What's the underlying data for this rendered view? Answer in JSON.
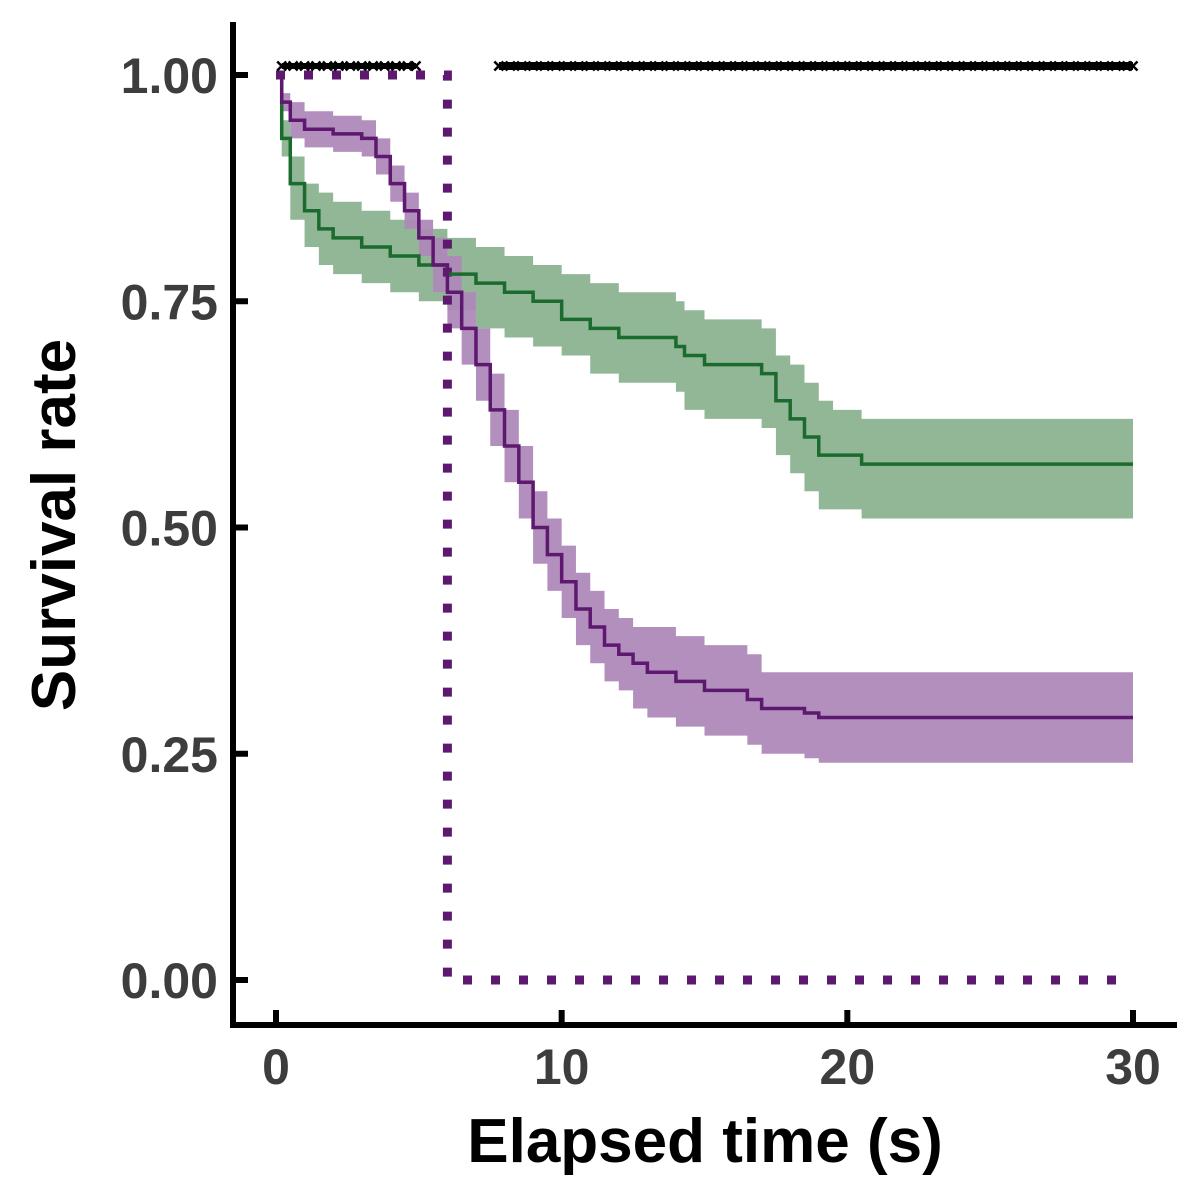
{
  "chart_data": {
    "type": "line",
    "title": "",
    "xlabel": "Elapsed time (s)",
    "ylabel": "Survival rate",
    "xlim": [
      -1.5,
      31.5
    ],
    "ylim": [
      -0.05,
      1.06
    ],
    "xticks": [
      0,
      10,
      20,
      30
    ],
    "xtick_labels": [
      "0",
      "10",
      "20",
      "30"
    ],
    "yticks": [
      0,
      0.25,
      0.5,
      0.75,
      1.0
    ],
    "ytick_labels": [
      "0.00",
      "0.25",
      "0.50",
      "0.75",
      "1.00"
    ],
    "grid": false,
    "legend": "none",
    "series": [
      {
        "color": "#1b6b2e",
        "band_color": "#8cb391",
        "x": [
          0,
          0.2,
          0.5,
          1,
          1.5,
          2,
          3,
          4,
          5,
          6,
          7,
          8,
          9,
          10,
          11,
          12,
          13,
          14,
          14.3,
          15,
          16,
          17,
          17.5,
          18,
          18.5,
          19,
          19.5,
          20,
          20.5,
          21,
          22,
          25,
          30
        ],
        "y": [
          1.0,
          0.93,
          0.88,
          0.85,
          0.83,
          0.82,
          0.81,
          0.8,
          0.79,
          0.78,
          0.77,
          0.76,
          0.75,
          0.73,
          0.72,
          0.71,
          0.71,
          0.7,
          0.69,
          0.68,
          0.68,
          0.67,
          0.64,
          0.62,
          0.6,
          0.58,
          0.58,
          0.58,
          0.57,
          0.57,
          0.57,
          0.57,
          0.57
        ],
        "lower": [
          1.0,
          0.91,
          0.84,
          0.81,
          0.79,
          0.78,
          0.77,
          0.76,
          0.75,
          0.74,
          0.72,
          0.71,
          0.7,
          0.69,
          0.67,
          0.66,
          0.66,
          0.65,
          0.63,
          0.62,
          0.62,
          0.61,
          0.58,
          0.56,
          0.54,
          0.52,
          0.52,
          0.52,
          0.51,
          0.51,
          0.51,
          0.51,
          0.51
        ],
        "upper": [
          1.0,
          0.95,
          0.91,
          0.88,
          0.87,
          0.86,
          0.85,
          0.84,
          0.83,
          0.82,
          0.81,
          0.8,
          0.79,
          0.78,
          0.77,
          0.76,
          0.76,
          0.75,
          0.74,
          0.73,
          0.73,
          0.72,
          0.69,
          0.68,
          0.66,
          0.64,
          0.63,
          0.63,
          0.62,
          0.62,
          0.62,
          0.62,
          0.62
        ]
      },
      {
        "color": "#5e1870",
        "band_color": "#ae89b8",
        "x": [
          0,
          0.2,
          0.5,
          1,
          2,
          3,
          3.5,
          4,
          4.5,
          5,
          5.5,
          6,
          6.5,
          7,
          7.5,
          8,
          8.5,
          9,
          9.5,
          10,
          10.5,
          11,
          11.5,
          12,
          12.5,
          13,
          14,
          15,
          16,
          16.5,
          17,
          18,
          18.5,
          19,
          20,
          25,
          30
        ],
        "y": [
          1.0,
          0.97,
          0.95,
          0.94,
          0.935,
          0.93,
          0.91,
          0.88,
          0.85,
          0.82,
          0.79,
          0.76,
          0.72,
          0.68,
          0.63,
          0.59,
          0.55,
          0.5,
          0.47,
          0.44,
          0.41,
          0.39,
          0.37,
          0.36,
          0.35,
          0.34,
          0.33,
          0.32,
          0.32,
          0.31,
          0.3,
          0.3,
          0.295,
          0.29,
          0.29,
          0.29,
          0.29
        ],
        "lower": [
          1.0,
          0.96,
          0.93,
          0.92,
          0.915,
          0.91,
          0.89,
          0.86,
          0.83,
          0.8,
          0.76,
          0.72,
          0.68,
          0.64,
          0.59,
          0.55,
          0.51,
          0.46,
          0.43,
          0.4,
          0.37,
          0.35,
          0.33,
          0.32,
          0.3,
          0.29,
          0.28,
          0.27,
          0.27,
          0.26,
          0.25,
          0.25,
          0.245,
          0.24,
          0.24,
          0.24,
          0.24
        ],
        "upper": [
          1.0,
          0.98,
          0.97,
          0.96,
          0.955,
          0.95,
          0.93,
          0.9,
          0.87,
          0.84,
          0.82,
          0.8,
          0.76,
          0.72,
          0.67,
          0.63,
          0.59,
          0.54,
          0.51,
          0.48,
          0.45,
          0.43,
          0.41,
          0.4,
          0.39,
          0.39,
          0.38,
          0.37,
          0.37,
          0.36,
          0.34,
          0.34,
          0.34,
          0.34,
          0.34,
          0.34,
          0.34
        ]
      }
    ],
    "reference_line": {
      "color": "#5e1870",
      "style": "dotted",
      "x": [
        0,
        6,
        6,
        30
      ],
      "y": [
        1.0,
        1.0,
        0.0,
        0.0
      ]
    },
    "censor_marks": {
      "marker": "x",
      "color": "#000000",
      "y": 1.01,
      "x": [
        0.2,
        0.6,
        1.0,
        1.4,
        1.8,
        2.2,
        2.6,
        3.0,
        3.4,
        3.8,
        4.2,
        4.6,
        4.9,
        7.8,
        8.2,
        8.6,
        9.0,
        9.4,
        9.8,
        10.2,
        10.6,
        11.0,
        11.4,
        11.8,
        12.2,
        12.6,
        13.0,
        13.4,
        13.8,
        14.2,
        14.6,
        15.0,
        15.4,
        15.8,
        16.2,
        16.6,
        17.0,
        17.4,
        17.8,
        18.2,
        18.6,
        19.0,
        19.4,
        19.8,
        20.2,
        20.6,
        21.0,
        21.4,
        21.8,
        22.2,
        22.6,
        23.0,
        23.4,
        23.8,
        24.2,
        24.6,
        25.0,
        25.4,
        25.8,
        26.2,
        26.6,
        27.0,
        27.4,
        27.8,
        28.2,
        28.6,
        29.0,
        29.4,
        29.8,
        30.0
      ]
    }
  }
}
